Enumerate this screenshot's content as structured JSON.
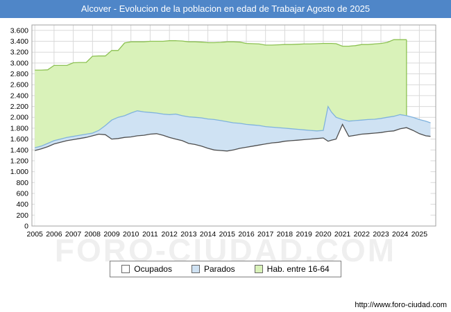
{
  "title": "Alcover - Evolucion de la poblacion en edad de Trabajar Agosto de 2025",
  "watermark": "FORO-CIUDAD.COM",
  "footer_url": "http://www.foro-ciudad.com",
  "colors": {
    "titlebar_bg": "#4f86c8",
    "grid": "#d9d9d9",
    "plot_border": "#a0a0a0",
    "hab_fill": "#d9f2b9",
    "hab_line": "#8cc152",
    "parados_fill": "#cfe2f3",
    "parados_line": "#7fb2dd",
    "ocupados_fill": "#ffffff",
    "ocupados_line": "#4d4d4d"
  },
  "legend": {
    "items": [
      {
        "label": "Ocupados",
        "color": "#ffffff"
      },
      {
        "label": "Parados",
        "color": "#cfe2f3"
      },
      {
        "label": "Hab. entre 16-64",
        "color": "#d9f2b9"
      }
    ]
  },
  "chart_data": {
    "type": "area",
    "title": "Alcover - Evolucion de la poblacion en edad de Trabajar Agosto de 2025",
    "xlabel": "",
    "ylabel": "",
    "ylim": [
      0,
      3700
    ],
    "ytick_step": 200,
    "ytick_max": 3600,
    "grid": true,
    "legend_position": "bottom",
    "x_ticks": [
      2005,
      2006,
      2007,
      2008,
      2009,
      2010,
      2011,
      2012,
      2013,
      2014,
      2015,
      2016,
      2017,
      2018,
      2019,
      2020,
      2021,
      2022,
      2023,
      2024,
      2025
    ],
    "x": [
      2005,
      2005.33,
      2005.67,
      2006,
      2006.33,
      2006.67,
      2007,
      2007.33,
      2007.67,
      2008,
      2008.33,
      2008.67,
      2009,
      2009.33,
      2009.67,
      2010,
      2010.33,
      2010.67,
      2011,
      2011.33,
      2011.67,
      2012,
      2012.33,
      2012.67,
      2013,
      2013.33,
      2013.67,
      2014,
      2014.33,
      2014.67,
      2015,
      2015.33,
      2015.67,
      2016,
      2016.33,
      2016.67,
      2017,
      2017.33,
      2017.67,
      2018,
      2018.33,
      2018.67,
      2019,
      2019.33,
      2019.67,
      2020,
      2020.25,
      2020.42,
      2020.67,
      2021,
      2021.33,
      2021.67,
      2022,
      2022.33,
      2022.67,
      2023,
      2023.33,
      2023.67,
      2024,
      2024.33,
      2024.67,
      2025,
      2025.33,
      2025.58
    ],
    "series": [
      {
        "name": "Hab. entre 16-64",
        "values": [
          2870,
          2870,
          2875,
          2955,
          2955,
          2955,
          3005,
          3010,
          3010,
          3125,
          3130,
          3130,
          3230,
          3230,
          3370,
          3390,
          3390,
          3390,
          3400,
          3400,
          3400,
          3410,
          3410,
          3405,
          3390,
          3390,
          3385,
          3375,
          3375,
          3380,
          3390,
          3390,
          3385,
          3360,
          3355,
          3350,
          3330,
          3330,
          3335,
          3340,
          3340,
          3345,
          3350,
          3350,
          3355,
          3360,
          3360,
          3360,
          3355,
          3310,
          3310,
          3320,
          3340,
          3340,
          3350,
          3360,
          3380,
          3430,
          3430,
          3430,
          null,
          null,
          null,
          null
        ]
      },
      {
        "name": "Ocupados+Parados",
        "values": [
          1440,
          1470,
          1520,
          1570,
          1600,
          1630,
          1650,
          1670,
          1690,
          1710,
          1760,
          1850,
          1950,
          2000,
          2030,
          2080,
          2120,
          2100,
          2090,
          2080,
          2060,
          2050,
          2060,
          2030,
          2010,
          2000,
          1990,
          1970,
          1960,
          1940,
          1920,
          1900,
          1890,
          1870,
          1860,
          1850,
          1830,
          1820,
          1810,
          1800,
          1790,
          1780,
          1770,
          1760,
          1750,
          1760,
          2200,
          2100,
          2000,
          1960,
          1930,
          1940,
          1950,
          1960,
          1965,
          1980,
          2000,
          2020,
          2050,
          2030,
          2000,
          1960,
          1930,
          1900
        ]
      },
      {
        "name": "Ocupados",
        "values": [
          1390,
          1420,
          1460,
          1510,
          1540,
          1570,
          1590,
          1610,
          1630,
          1660,
          1690,
          1680,
          1600,
          1610,
          1630,
          1640,
          1660,
          1670,
          1690,
          1700,
          1670,
          1630,
          1600,
          1570,
          1520,
          1500,
          1470,
          1430,
          1400,
          1390,
          1380,
          1400,
          1430,
          1450,
          1470,
          1490,
          1510,
          1530,
          1540,
          1560,
          1570,
          1580,
          1590,
          1600,
          1610,
          1620,
          1560,
          1580,
          1600,
          1870,
          1650,
          1670,
          1690,
          1700,
          1710,
          1720,
          1740,
          1750,
          1790,
          1810,
          1760,
          1700,
          1660,
          1650
        ]
      }
    ]
  }
}
